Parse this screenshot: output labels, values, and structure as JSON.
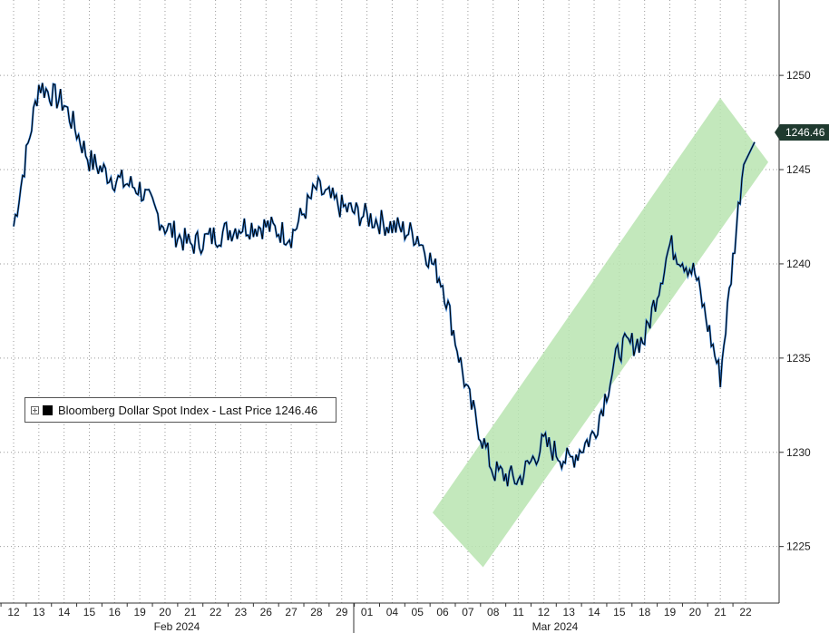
{
  "chart_data": {
    "type": "line",
    "title": "",
    "xlabel": "",
    "ylabel": "",
    "ylim": [
      1222,
      1254
    ],
    "yticks": [
      1225,
      1230,
      1235,
      1240,
      1245,
      1250
    ],
    "grid": true,
    "legend_position": "left-middle",
    "x_tick_labels": [
      "12",
      "13",
      "14",
      "15",
      "16",
      "19",
      "20",
      "21",
      "22",
      "23",
      "26",
      "27",
      "28",
      "29",
      "01",
      "04",
      "05",
      "06",
      "07",
      "08",
      "11",
      "12",
      "13",
      "14",
      "15",
      "18",
      "19",
      "20",
      "21",
      "22"
    ],
    "month_labels": [
      "Feb 2024",
      "Mar 2024"
    ],
    "series": [
      {
        "name": "Bloomberg Dollar Spot Index - Last Price",
        "last_price": "1246.46",
        "x": [
          "12",
          "13",
          "14",
          "15",
          "16",
          "19",
          "20",
          "21",
          "22",
          "23",
          "26",
          "27",
          "28",
          "29",
          "01",
          "04",
          "05",
          "06",
          "07",
          "08",
          "11",
          "12",
          "13",
          "14",
          "15",
          "18",
          "19",
          "20",
          "21",
          "22"
        ],
        "values": [
          1242.0,
          1249.5,
          1248.5,
          1245.5,
          1244.5,
          1244.0,
          1242.0,
          1241.0,
          1241.5,
          1242.0,
          1242.0,
          1241.5,
          1244.0,
          1243.0,
          1242.5,
          1242.0,
          1241.5,
          1239.0,
          1233.0,
          1229.0,
          1228.5,
          1230.5,
          1229.5,
          1231.0,
          1235.5,
          1236.0,
          1241.0,
          1239.5,
          1234.0,
          1246.46
        ]
      }
    ],
    "channel_annotation": "upward trend channel"
  },
  "legend": {
    "label": "Bloomberg Dollar Spot Index - Last Price 1246.46"
  },
  "price_tag": "1246.46",
  "colors": {
    "line": "#000000",
    "line_highlight": "#2f7ed8",
    "channel_fill": "#b8e4b0",
    "price_tag_bg": "#1f3a2f",
    "grid": "#9a9a9a"
  }
}
